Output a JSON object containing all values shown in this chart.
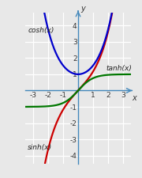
{
  "xlim": [
    -3.5,
    3.5
  ],
  "ylim": [
    -4.5,
    4.8
  ],
  "xticks": [
    -3,
    -2,
    -1,
    1,
    2,
    3
  ],
  "yticks": [
    -4,
    -3,
    -2,
    -1,
    1,
    2,
    3,
    4
  ],
  "sinh_color": "#cc0000",
  "cosh_color": "#0000cc",
  "tanh_color": "#007700",
  "background_color": "#e8e8e8",
  "grid_color": "#ffffff",
  "axis_color": "#4488bb",
  "label_sinh": "sinh(x)",
  "label_cosh": "cosh(x)",
  "label_tanh": "tanh(x)",
  "label_x": "x",
  "label_y": "y",
  "linewidth": 1.6,
  "font_size": 7.0,
  "tick_font_size": 6.5
}
